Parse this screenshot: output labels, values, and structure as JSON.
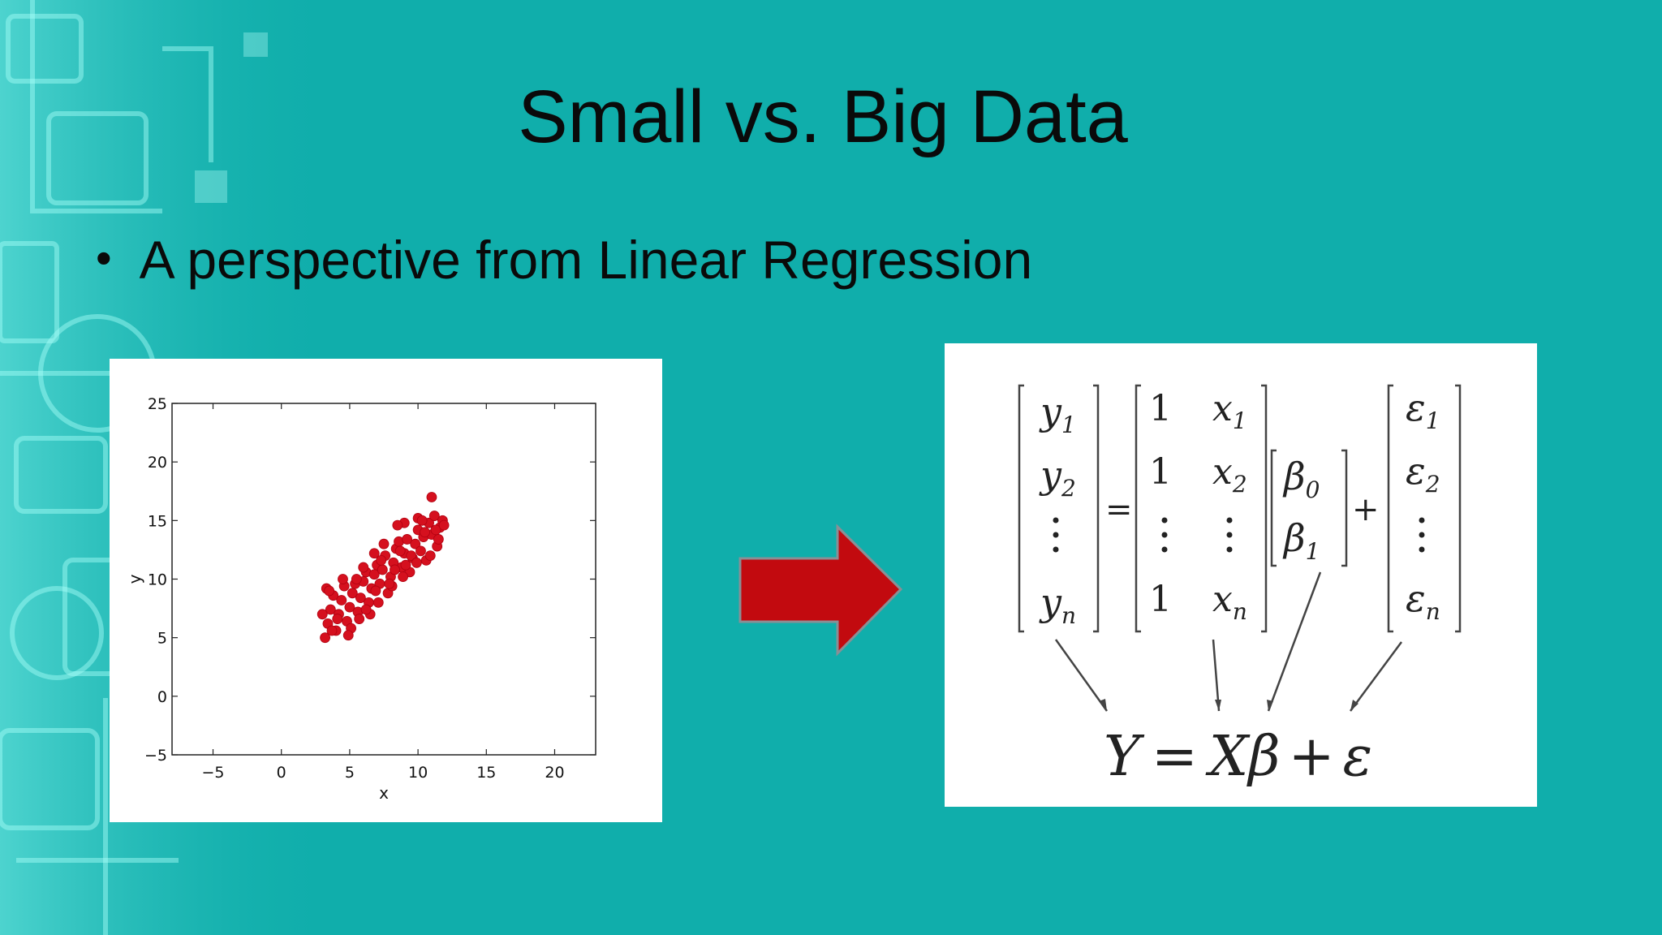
{
  "slide": {
    "title": "Small vs. Big Data",
    "bullet": "A perspective from Linear Regression"
  },
  "colors": {
    "background": "#10aeab",
    "arrow": "#c20a0f",
    "points": "#d5101e"
  },
  "chart_data": {
    "type": "scatter",
    "title": "",
    "xlabel": "x",
    "ylabel": "y",
    "xlim": [
      -8,
      23
    ],
    "ylim": [
      -5,
      25
    ],
    "xticks": [
      -5,
      0,
      5,
      10,
      15,
      20
    ],
    "yticks": [
      -5,
      0,
      5,
      10,
      15,
      20,
      25
    ],
    "xtick_labels": [
      "−5",
      "0",
      "5",
      "10",
      "15",
      "20"
    ],
    "ytick_labels": [
      "−5",
      "0",
      "5",
      "10",
      "15",
      "20",
      "25"
    ],
    "grid": false,
    "series": [
      {
        "points": [
          [
            3.2,
            5.0
          ],
          [
            3.4,
            6.2
          ],
          [
            3.6,
            7.4
          ],
          [
            3.8,
            8.6
          ],
          [
            3.3,
            9.2
          ],
          [
            4.0,
            5.6
          ],
          [
            4.2,
            7.0
          ],
          [
            4.4,
            8.2
          ],
          [
            4.6,
            9.4
          ],
          [
            4.8,
            6.4
          ],
          [
            5.0,
            7.6
          ],
          [
            5.2,
            8.8
          ],
          [
            5.4,
            9.6
          ],
          [
            5.1,
            5.8
          ],
          [
            5.6,
            7.2
          ],
          [
            5.8,
            8.4
          ],
          [
            6.0,
            9.8
          ],
          [
            6.2,
            10.6
          ],
          [
            6.4,
            8.0
          ],
          [
            6.6,
            9.2
          ],
          [
            6.8,
            10.4
          ],
          [
            6.5,
            7.0
          ],
          [
            7.0,
            11.2
          ],
          [
            7.2,
            9.6
          ],
          [
            7.4,
            10.8
          ],
          [
            7.6,
            12.0
          ],
          [
            7.8,
            8.8
          ],
          [
            8.0,
            10.2
          ],
          [
            8.2,
            11.4
          ],
          [
            8.4,
            12.6
          ],
          [
            8.1,
            9.4
          ],
          [
            8.6,
            13.2
          ],
          [
            8.8,
            11.0
          ],
          [
            9.0,
            12.2
          ],
          [
            9.2,
            13.4
          ],
          [
            9.4,
            10.6
          ],
          [
            9.6,
            11.8
          ],
          [
            9.8,
            13.0
          ],
          [
            10.0,
            14.2
          ],
          [
            10.2,
            12.4
          ],
          [
            10.4,
            13.6
          ],
          [
            10.6,
            11.6
          ],
          [
            10.8,
            14.8
          ],
          [
            11.0,
            13.8
          ],
          [
            11.2,
            15.4
          ],
          [
            11.4,
            12.8
          ],
          [
            11.6,
            14.4
          ],
          [
            11.8,
            15.0
          ],
          [
            11.0,
            17.0
          ],
          [
            10.0,
            15.2
          ],
          [
            9.0,
            14.8
          ],
          [
            8.5,
            14.6
          ],
          [
            7.5,
            13.0
          ],
          [
            6.8,
            12.2
          ],
          [
            6.0,
            11.0
          ],
          [
            5.5,
            10.0
          ],
          [
            4.5,
            10.0
          ],
          [
            3.5,
            9.0
          ],
          [
            3.0,
            7.0
          ],
          [
            4.1,
            6.6
          ],
          [
            6.2,
            7.4
          ],
          [
            7.1,
            8.0
          ],
          [
            8.3,
            10.8
          ],
          [
            9.5,
            12.0
          ],
          [
            10.5,
            14.0
          ],
          [
            11.5,
            13.4
          ],
          [
            10.9,
            12.0
          ],
          [
            9.9,
            11.4
          ],
          [
            8.9,
            10.2
          ],
          [
            7.9,
            9.6
          ],
          [
            5.7,
            6.6
          ],
          [
            4.9,
            5.2
          ],
          [
            3.7,
            5.6
          ],
          [
            6.9,
            9.0
          ],
          [
            9.1,
            11.2
          ],
          [
            10.3,
            15.0
          ],
          [
            11.3,
            14.2
          ],
          [
            11.9,
            14.6
          ],
          [
            8.7,
            12.4
          ],
          [
            7.3,
            11.6
          ]
        ]
      }
    ]
  },
  "equation": {
    "lhs_vector": [
      {
        "base": "y",
        "sub": "1"
      },
      {
        "base": "y",
        "sub": "2"
      },
      {
        "dots": true
      },
      {
        "base": "y",
        "sub": "n"
      }
    ],
    "equals": "=",
    "design_matrix": {
      "ones": [
        "1",
        "1",
        "1"
      ],
      "x": [
        {
          "base": "x",
          "sub": "1"
        },
        {
          "base": "x",
          "sub": "2"
        },
        {
          "base": "x",
          "sub": "n"
        }
      ]
    },
    "beta_vector": [
      {
        "base": "β",
        "sub": "0"
      },
      {
        "base": "β",
        "sub": "1"
      }
    ],
    "plus": "+",
    "error_vector": [
      {
        "base": "ε",
        "sub": "1"
      },
      {
        "base": "ε",
        "sub": "2"
      },
      {
        "dots": true
      },
      {
        "base": "ε",
        "sub": "n"
      }
    ],
    "compact": {
      "Y": "Y",
      "eq": "=",
      "X": "X",
      "beta": "β",
      "plus": "+",
      "eps": "ε"
    }
  }
}
